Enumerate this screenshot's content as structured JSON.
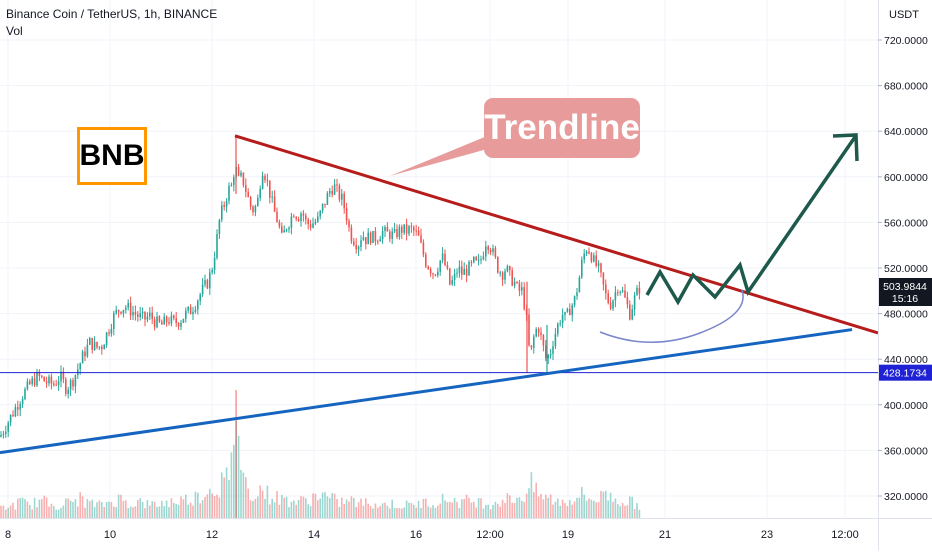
{
  "header": {
    "symbol_line": "Binance Coin / TetherUS, 1h, BINANCE",
    "volume_label": "Vol"
  },
  "annotations": {
    "badge": "BNB",
    "callout": "Trendline"
  },
  "price_axis": {
    "currency": "USDT",
    "current_price": "503.9844",
    "countdown": "15:16",
    "hline_price": "428.1734"
  },
  "colors": {
    "up": "#26a69a",
    "down": "#ef5350",
    "resistance_line": "#b71c1c",
    "support_line": "#1565c0",
    "projection": "#1e5a4c",
    "curve": "#7986cb",
    "hline": "#1e22d4",
    "badge_border": "#ff9800",
    "callout_bg": "#e79b9b"
  },
  "chart_data": {
    "type": "candlestick",
    "title": "Binance Coin / TetherUS, 1h, BINANCE",
    "y_ticks": [
      "720.0000",
      "680.0000",
      "640.0000",
      "600.0000",
      "560.0000",
      "520.0000",
      "480.0000",
      "440.0000",
      "400.0000",
      "360.0000",
      "320.0000"
    ],
    "y_tick_values": [
      720,
      680,
      640,
      600,
      560,
      520,
      480,
      440,
      400,
      360,
      320
    ],
    "x_ticks": [
      "8",
      "10",
      "12",
      "14",
      "16",
      "12:00",
      "19",
      "21",
      "23",
      "12:00"
    ],
    "ylim": [
      290,
      758
    ],
    "volume_series": "Vol",
    "close_path": [
      [
        0,
        372
      ],
      [
        8,
        385
      ],
      [
        14,
        395
      ],
      [
        22,
        408
      ],
      [
        30,
        418
      ],
      [
        38,
        425
      ],
      [
        46,
        420
      ],
      [
        54,
        418
      ],
      [
        60,
        425
      ],
      [
        66,
        415
      ],
      [
        72,
        420
      ],
      [
        78,
        432
      ],
      [
        84,
        445
      ],
      [
        90,
        455
      ],
      [
        96,
        450
      ],
      [
        102,
        452
      ],
      [
        108,
        465
      ],
      [
        114,
        478
      ],
      [
        120,
        485
      ],
      [
        126,
        486
      ],
      [
        132,
        482
      ],
      [
        138,
        478
      ],
      [
        144,
        475
      ],
      [
        150,
        478
      ],
      [
        156,
        472
      ],
      [
        162,
        470
      ],
      [
        168,
        475
      ],
      [
        174,
        472
      ],
      [
        180,
        474
      ],
      [
        186,
        480
      ],
      [
        190,
        482
      ],
      [
        196,
        490
      ],
      [
        202,
        500
      ],
      [
        208,
        508
      ],
      [
        212,
        520
      ],
      [
        216,
        540
      ],
      [
        220,
        565
      ],
      [
        224,
        575
      ],
      [
        228,
        588
      ],
      [
        232,
        592
      ],
      [
        235,
        612
      ],
      [
        238,
        596
      ],
      [
        242,
        600
      ],
      [
        246,
        588
      ],
      [
        250,
        575
      ],
      [
        254,
        570
      ],
      [
        258,
        580
      ],
      [
        262,
        608
      ],
      [
        266,
        600
      ],
      [
        270,
        585
      ],
      [
        274,
        570
      ],
      [
        278,
        560
      ],
      [
        282,
        545
      ],
      [
        286,
        556
      ],
      [
        290,
        562
      ],
      [
        294,
        570
      ],
      [
        298,
        565
      ],
      [
        302,
        570
      ],
      [
        306,
        560
      ],
      [
        310,
        558
      ],
      [
        314,
        560
      ],
      [
        318,
        562
      ],
      [
        322,
        572
      ],
      [
        326,
        580
      ],
      [
        330,
        588
      ],
      [
        334,
        592
      ],
      [
        338,
        585
      ],
      [
        342,
        580
      ],
      [
        346,
        568
      ],
      [
        350,
        550
      ],
      [
        354,
        545
      ],
      [
        358,
        540
      ],
      [
        362,
        550
      ],
      [
        366,
        545
      ],
      [
        370,
        548
      ],
      [
        374,
        546
      ],
      [
        378,
        548
      ],
      [
        382,
        552
      ],
      [
        386,
        550
      ],
      [
        390,
        550
      ],
      [
        394,
        548
      ],
      [
        398,
        552
      ],
      [
        402,
        554
      ],
      [
        406,
        552
      ],
      [
        410,
        554
      ],
      [
        414,
        552
      ],
      [
        418,
        548
      ],
      [
        422,
        536
      ],
      [
        426,
        525
      ],
      [
        430,
        520
      ],
      [
        434,
        515
      ],
      [
        438,
        522
      ],
      [
        442,
        530
      ],
      [
        446,
        520
      ],
      [
        450,
        505
      ],
      [
        454,
        510
      ],
      [
        458,
        520
      ],
      [
        462,
        515
      ],
      [
        466,
        518
      ],
      [
        470,
        520
      ],
      [
        474,
        525
      ],
      [
        478,
        522
      ],
      [
        482,
        530
      ],
      [
        486,
        544
      ],
      [
        490,
        540
      ],
      [
        494,
        530
      ],
      [
        498,
        520
      ],
      [
        502,
        515
      ],
      [
        506,
        520
      ],
      [
        510,
        512
      ],
      [
        514,
        508
      ],
      [
        518,
        500
      ],
      [
        522,
        500
      ],
      [
        526,
        480
      ],
      [
        530,
        440
      ],
      [
        534,
        460
      ],
      [
        538,
        470
      ],
      [
        542,
        455
      ],
      [
        546,
        440
      ],
      [
        550,
        445
      ],
      [
        554,
        460
      ],
      [
        558,
        470
      ],
      [
        562,
        480
      ],
      [
        566,
        475
      ],
      [
        570,
        485
      ],
      [
        574,
        490
      ],
      [
        578,
        505
      ],
      [
        582,
        525
      ],
      [
        586,
        538
      ],
      [
        590,
        535
      ],
      [
        594,
        525
      ],
      [
        598,
        520
      ],
      [
        602,
        508
      ],
      [
        606,
        495
      ],
      [
        610,
        488
      ],
      [
        614,
        495
      ],
      [
        618,
        505
      ],
      [
        622,
        500
      ],
      [
        626,
        490
      ],
      [
        630,
        480
      ],
      [
        634,
        492
      ],
      [
        638,
        500
      ],
      [
        641,
        505
      ]
    ],
    "volume": [
      [
        0,
        0.3
      ],
      [
        10,
        0.35
      ],
      [
        20,
        0.5
      ],
      [
        30,
        0.4
      ],
      [
        40,
        0.55
      ],
      [
        50,
        0.45
      ],
      [
        60,
        0.4
      ],
      [
        70,
        0.5
      ],
      [
        80,
        0.6
      ],
      [
        90,
        0.45
      ],
      [
        100,
        0.4
      ],
      [
        110,
        0.5
      ],
      [
        120,
        0.6
      ],
      [
        130,
        0.45
      ],
      [
        140,
        0.5
      ],
      [
        150,
        0.4
      ],
      [
        160,
        0.45
      ],
      [
        170,
        0.5
      ],
      [
        180,
        0.55
      ],
      [
        190,
        0.6
      ],
      [
        200,
        0.7
      ],
      [
        210,
        0.9
      ],
      [
        220,
        1.0
      ],
      [
        225,
        1.3
      ],
      [
        230,
        0.9
      ],
      [
        236,
        4.0
      ],
      [
        240,
        1.9
      ],
      [
        245,
        1.1
      ],
      [
        250,
        0.8
      ],
      [
        260,
        0.9
      ],
      [
        270,
        0.7
      ],
      [
        280,
        0.6
      ],
      [
        290,
        0.55
      ],
      [
        300,
        0.5
      ],
      [
        310,
        0.6
      ],
      [
        320,
        0.75
      ],
      [
        330,
        0.6
      ],
      [
        340,
        0.5
      ],
      [
        350,
        0.55
      ],
      [
        360,
        0.45
      ],
      [
        370,
        0.5
      ],
      [
        380,
        0.4
      ],
      [
        390,
        0.45
      ],
      [
        400,
        0.4
      ],
      [
        410,
        0.4
      ],
      [
        420,
        0.45
      ],
      [
        430,
        0.5
      ],
      [
        440,
        0.55
      ],
      [
        450,
        0.6
      ],
      [
        460,
        0.5
      ],
      [
        470,
        0.55
      ],
      [
        480,
        0.5
      ],
      [
        490,
        0.45
      ],
      [
        500,
        0.55
      ],
      [
        510,
        0.6
      ],
      [
        520,
        0.65
      ],
      [
        526,
        0.75
      ],
      [
        530,
        1.1
      ],
      [
        536,
        0.8
      ],
      [
        540,
        0.7
      ],
      [
        550,
        0.6
      ],
      [
        560,
        0.5
      ],
      [
        570,
        0.55
      ],
      [
        580,
        0.75
      ],
      [
        586,
        0.65
      ],
      [
        590,
        0.6
      ],
      [
        600,
        0.6
      ],
      [
        606,
        0.9
      ],
      [
        610,
        0.65
      ],
      [
        620,
        0.55
      ],
      [
        630,
        0.5
      ],
      [
        640,
        0.4
      ]
    ]
  }
}
